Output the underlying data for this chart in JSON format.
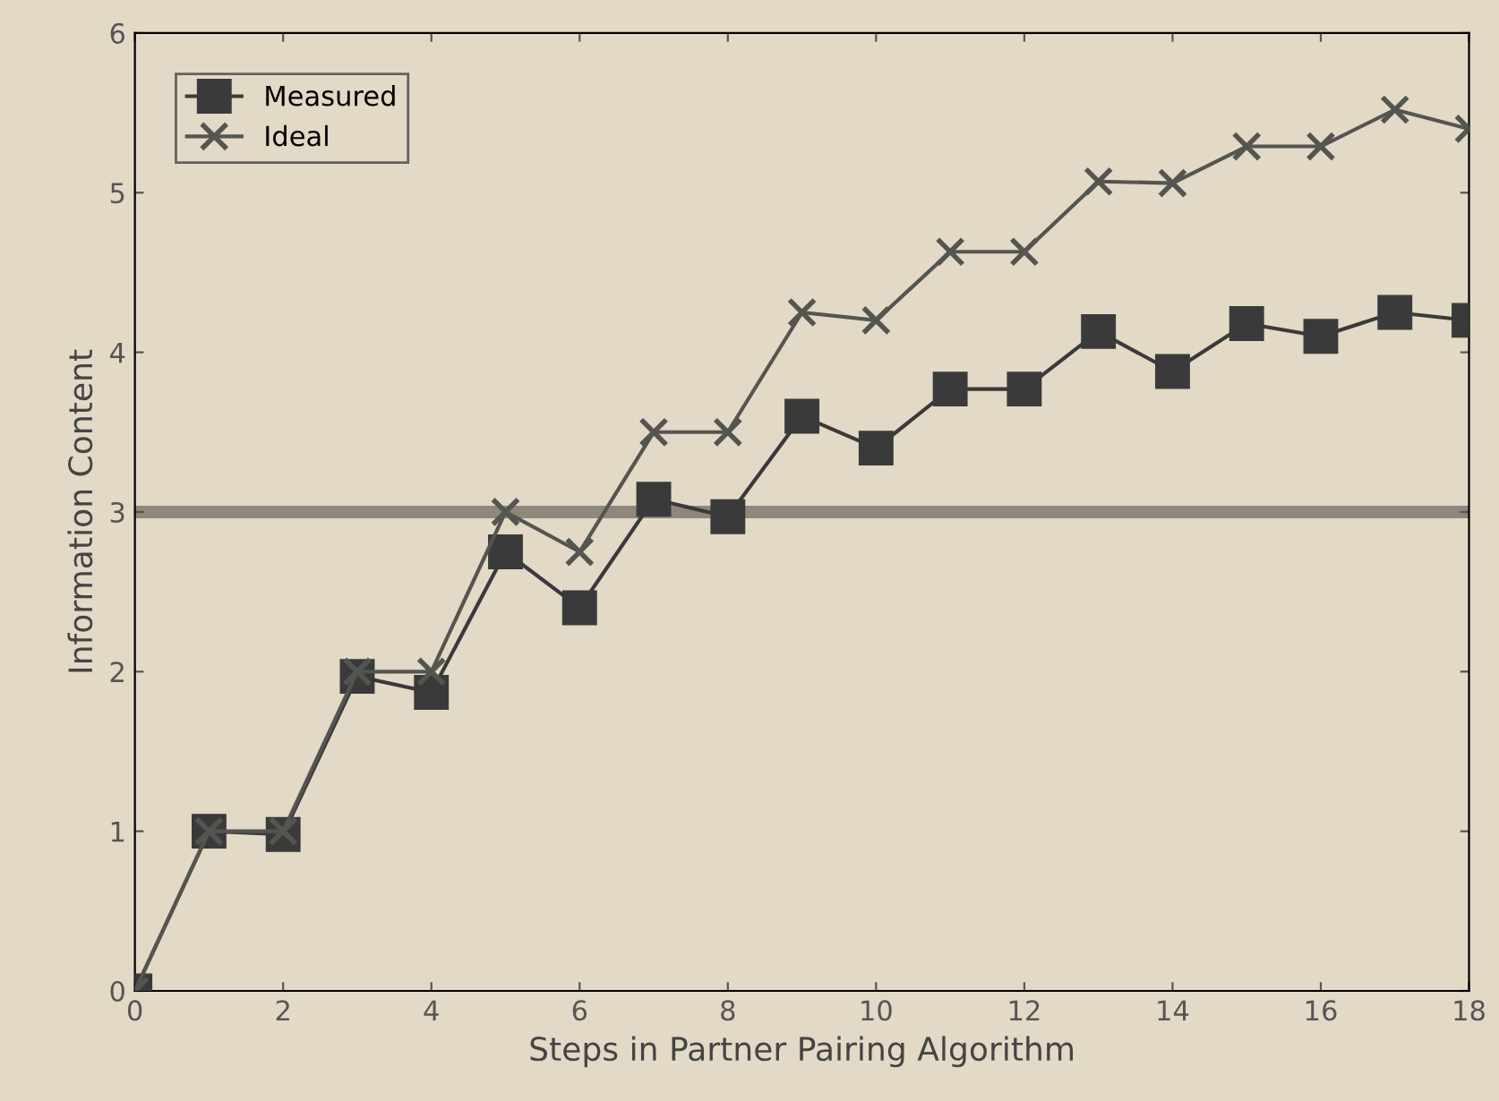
{
  "chart_data": {
    "type": "line",
    "xlabel": "Steps in Partner Pairing Algorithm",
    "ylabel": "Information Content",
    "x": [
      0,
      1,
      2,
      3,
      4,
      5,
      6,
      7,
      8,
      9,
      10,
      11,
      12,
      13,
      14,
      15,
      16,
      17,
      18
    ],
    "series": [
      {
        "name": "Measured",
        "color": "#3a3a3a",
        "marker": "square",
        "values": [
          0,
          1.0,
          0.98,
          1.97,
          1.87,
          2.75,
          2.4,
          3.08,
          2.97,
          3.6,
          3.4,
          3.77,
          3.77,
          4.13,
          3.88,
          4.18,
          4.1,
          4.25,
          4.2
        ]
      },
      {
        "name": "Ideal",
        "color": "#555550",
        "marker": "cross",
        "values": [
          0,
          1.0,
          1.0,
          2.0,
          2.0,
          3.0,
          2.75,
          3.5,
          3.5,
          4.25,
          4.2,
          4.63,
          4.63,
          5.07,
          5.06,
          5.29,
          5.29,
          5.52,
          5.4
        ]
      }
    ],
    "xlim": [
      0,
      18
    ],
    "ylim": [
      0,
      6
    ],
    "xticks": [
      0,
      2,
      4,
      6,
      8,
      10,
      12,
      14,
      16,
      18
    ],
    "yticks": [
      0,
      1,
      2,
      3,
      4,
      5,
      6
    ],
    "ref_lines": [
      {
        "axis": "y",
        "value": 3,
        "color": "#8e887c"
      }
    ],
    "legend": "top left",
    "grid": false,
    "line_style": "solid"
  }
}
